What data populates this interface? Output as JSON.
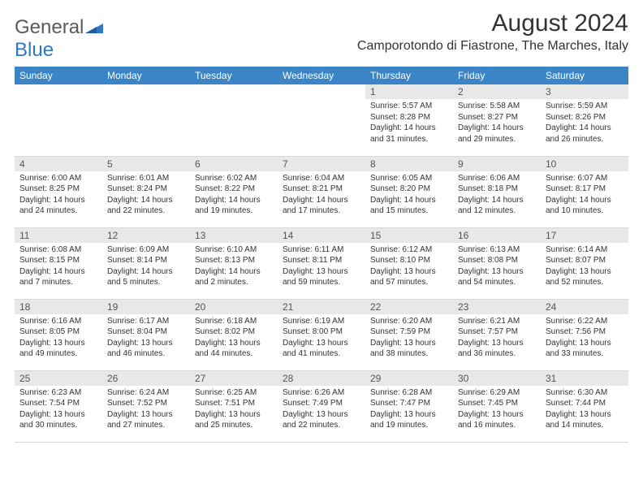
{
  "logo": {
    "word1": "General",
    "word2": "Blue"
  },
  "title": "August 2024",
  "location": "Camporotondo di Fiastrone, The Marches, Italy",
  "colors": {
    "header_bg": "#3b85c6",
    "header_fg": "#ffffff",
    "daynum_bg": "#e8e8e8",
    "logo_gray": "#5a5a5a",
    "logo_blue": "#2f78c3"
  },
  "weekdays": [
    "Sunday",
    "Monday",
    "Tuesday",
    "Wednesday",
    "Thursday",
    "Friday",
    "Saturday"
  ],
  "grid": [
    [
      {
        "n": "",
        "sr": "",
        "ss": "",
        "dl": ""
      },
      {
        "n": "",
        "sr": "",
        "ss": "",
        "dl": ""
      },
      {
        "n": "",
        "sr": "",
        "ss": "",
        "dl": ""
      },
      {
        "n": "",
        "sr": "",
        "ss": "",
        "dl": ""
      },
      {
        "n": "1",
        "sr": "Sunrise: 5:57 AM",
        "ss": "Sunset: 8:28 PM",
        "dl": "Daylight: 14 hours and 31 minutes."
      },
      {
        "n": "2",
        "sr": "Sunrise: 5:58 AM",
        "ss": "Sunset: 8:27 PM",
        "dl": "Daylight: 14 hours and 29 minutes."
      },
      {
        "n": "3",
        "sr": "Sunrise: 5:59 AM",
        "ss": "Sunset: 8:26 PM",
        "dl": "Daylight: 14 hours and 26 minutes."
      }
    ],
    [
      {
        "n": "4",
        "sr": "Sunrise: 6:00 AM",
        "ss": "Sunset: 8:25 PM",
        "dl": "Daylight: 14 hours and 24 minutes."
      },
      {
        "n": "5",
        "sr": "Sunrise: 6:01 AM",
        "ss": "Sunset: 8:24 PM",
        "dl": "Daylight: 14 hours and 22 minutes."
      },
      {
        "n": "6",
        "sr": "Sunrise: 6:02 AM",
        "ss": "Sunset: 8:22 PM",
        "dl": "Daylight: 14 hours and 19 minutes."
      },
      {
        "n": "7",
        "sr": "Sunrise: 6:04 AM",
        "ss": "Sunset: 8:21 PM",
        "dl": "Daylight: 14 hours and 17 minutes."
      },
      {
        "n": "8",
        "sr": "Sunrise: 6:05 AM",
        "ss": "Sunset: 8:20 PM",
        "dl": "Daylight: 14 hours and 15 minutes."
      },
      {
        "n": "9",
        "sr": "Sunrise: 6:06 AM",
        "ss": "Sunset: 8:18 PM",
        "dl": "Daylight: 14 hours and 12 minutes."
      },
      {
        "n": "10",
        "sr": "Sunrise: 6:07 AM",
        "ss": "Sunset: 8:17 PM",
        "dl": "Daylight: 14 hours and 10 minutes."
      }
    ],
    [
      {
        "n": "11",
        "sr": "Sunrise: 6:08 AM",
        "ss": "Sunset: 8:15 PM",
        "dl": "Daylight: 14 hours and 7 minutes."
      },
      {
        "n": "12",
        "sr": "Sunrise: 6:09 AM",
        "ss": "Sunset: 8:14 PM",
        "dl": "Daylight: 14 hours and 5 minutes."
      },
      {
        "n": "13",
        "sr": "Sunrise: 6:10 AM",
        "ss": "Sunset: 8:13 PM",
        "dl": "Daylight: 14 hours and 2 minutes."
      },
      {
        "n": "14",
        "sr": "Sunrise: 6:11 AM",
        "ss": "Sunset: 8:11 PM",
        "dl": "Daylight: 13 hours and 59 minutes."
      },
      {
        "n": "15",
        "sr": "Sunrise: 6:12 AM",
        "ss": "Sunset: 8:10 PM",
        "dl": "Daylight: 13 hours and 57 minutes."
      },
      {
        "n": "16",
        "sr": "Sunrise: 6:13 AM",
        "ss": "Sunset: 8:08 PM",
        "dl": "Daylight: 13 hours and 54 minutes."
      },
      {
        "n": "17",
        "sr": "Sunrise: 6:14 AM",
        "ss": "Sunset: 8:07 PM",
        "dl": "Daylight: 13 hours and 52 minutes."
      }
    ],
    [
      {
        "n": "18",
        "sr": "Sunrise: 6:16 AM",
        "ss": "Sunset: 8:05 PM",
        "dl": "Daylight: 13 hours and 49 minutes."
      },
      {
        "n": "19",
        "sr": "Sunrise: 6:17 AM",
        "ss": "Sunset: 8:04 PM",
        "dl": "Daylight: 13 hours and 46 minutes."
      },
      {
        "n": "20",
        "sr": "Sunrise: 6:18 AM",
        "ss": "Sunset: 8:02 PM",
        "dl": "Daylight: 13 hours and 44 minutes."
      },
      {
        "n": "21",
        "sr": "Sunrise: 6:19 AM",
        "ss": "Sunset: 8:00 PM",
        "dl": "Daylight: 13 hours and 41 minutes."
      },
      {
        "n": "22",
        "sr": "Sunrise: 6:20 AM",
        "ss": "Sunset: 7:59 PM",
        "dl": "Daylight: 13 hours and 38 minutes."
      },
      {
        "n": "23",
        "sr": "Sunrise: 6:21 AM",
        "ss": "Sunset: 7:57 PM",
        "dl": "Daylight: 13 hours and 36 minutes."
      },
      {
        "n": "24",
        "sr": "Sunrise: 6:22 AM",
        "ss": "Sunset: 7:56 PM",
        "dl": "Daylight: 13 hours and 33 minutes."
      }
    ],
    [
      {
        "n": "25",
        "sr": "Sunrise: 6:23 AM",
        "ss": "Sunset: 7:54 PM",
        "dl": "Daylight: 13 hours and 30 minutes."
      },
      {
        "n": "26",
        "sr": "Sunrise: 6:24 AM",
        "ss": "Sunset: 7:52 PM",
        "dl": "Daylight: 13 hours and 27 minutes."
      },
      {
        "n": "27",
        "sr": "Sunrise: 6:25 AM",
        "ss": "Sunset: 7:51 PM",
        "dl": "Daylight: 13 hours and 25 minutes."
      },
      {
        "n": "28",
        "sr": "Sunrise: 6:26 AM",
        "ss": "Sunset: 7:49 PM",
        "dl": "Daylight: 13 hours and 22 minutes."
      },
      {
        "n": "29",
        "sr": "Sunrise: 6:28 AM",
        "ss": "Sunset: 7:47 PM",
        "dl": "Daylight: 13 hours and 19 minutes."
      },
      {
        "n": "30",
        "sr": "Sunrise: 6:29 AM",
        "ss": "Sunset: 7:45 PM",
        "dl": "Daylight: 13 hours and 16 minutes."
      },
      {
        "n": "31",
        "sr": "Sunrise: 6:30 AM",
        "ss": "Sunset: 7:44 PM",
        "dl": "Daylight: 13 hours and 14 minutes."
      }
    ]
  ]
}
